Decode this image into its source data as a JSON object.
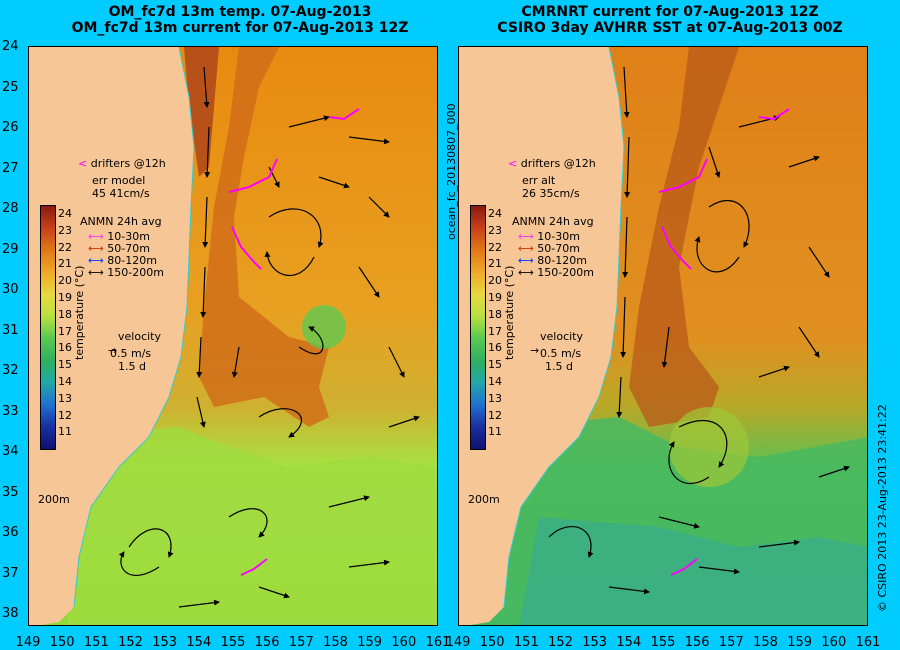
{
  "left_panel": {
    "title_line1": "OM_fc7d 13m temp. 07-Aug-2013",
    "title_line2": "OM_fc7d 13m current for 07-Aug-2013 12Z",
    "drifters_label": "drifters @12h",
    "err_label": "err model",
    "err_value": "45 41cm/s",
    "isobath": "200m"
  },
  "right_panel": {
    "title_line1": "CMRNRT current for 07-Aug-2013 12Z",
    "title_line2": "CSIRO 3day AVHRR SST at 07-Aug-2013 00Z",
    "drifters_label": "drifters @12h",
    "err_label": "err alt",
    "err_value": "26 35cm/s",
    "isobath": "200m"
  },
  "legend": {
    "title": "ANMN 24h avg",
    "depths": [
      "10-30m",
      "50-70m",
      "80-120m",
      "150-200m"
    ],
    "depth_colors": [
      "#ff33ff",
      "#cc3300",
      "#0033ff",
      "#000000"
    ]
  },
  "colorbar": {
    "title": "temperature (°C)",
    "ticks": [
      "24",
      "23",
      "22",
      "21",
      "20",
      "19",
      "18",
      "17",
      "16",
      "15",
      "14",
      "13",
      "12",
      "11"
    ]
  },
  "velocity": {
    "label": "velocity",
    "speed": "0.5 m/s",
    "duration": "1.5 d"
  },
  "latitude_ticks": [
    "24",
    "25",
    "26",
    "27",
    "28",
    "29",
    "30",
    "31",
    "32",
    "33",
    "34",
    "35",
    "36",
    "37",
    "38"
  ],
  "longitude_ticks": [
    "149",
    "150",
    "151",
    "152",
    "153",
    "154",
    "155",
    "156",
    "157",
    "158",
    "159",
    "160",
    "161"
  ],
  "side_label": "ocean_fc_20130807_000",
  "copyright": "© CSIRO 2013   23-Aug-2013 23:41:22",
  "colors": {
    "background": "#00ccff",
    "land": "#f7c697",
    "warm": "#c8501a",
    "mid": "#e88a10",
    "cool": "#b8e040",
    "cold": "#39c06a",
    "drifter": "#ff00ff"
  }
}
